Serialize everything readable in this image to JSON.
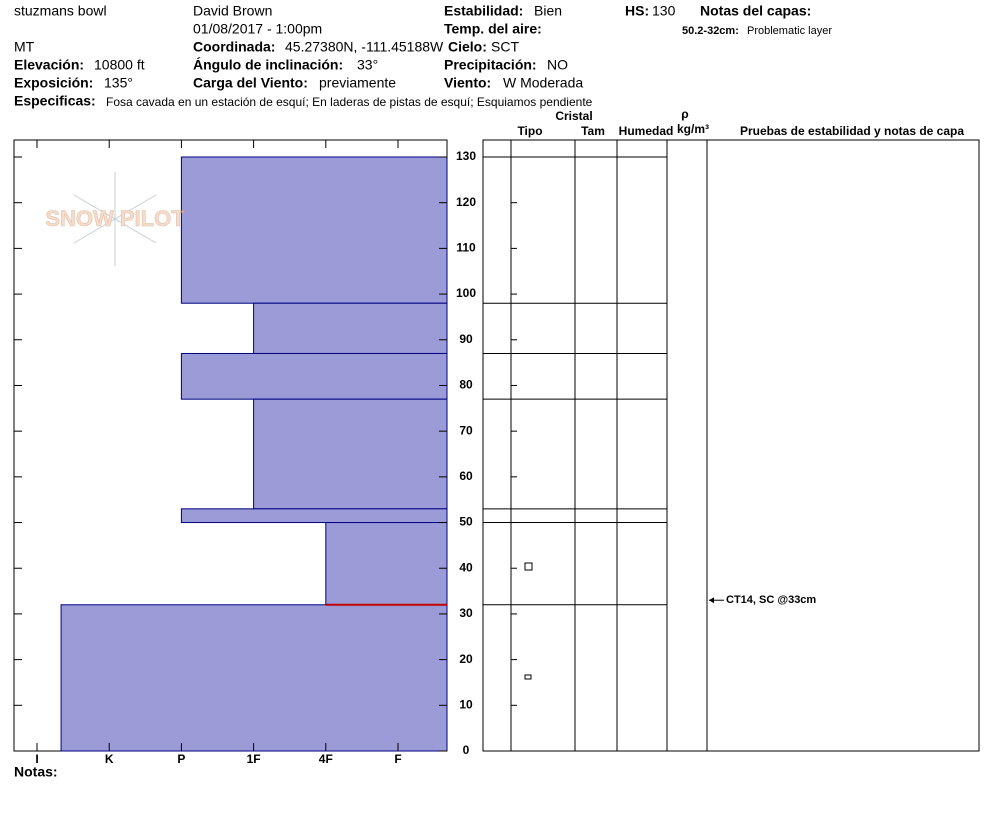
{
  "header": {
    "location": "stuzmans bowl",
    "observer": "David Brown",
    "datetime": "01/08/2017 - 1:00pm",
    "state": "MT",
    "elevation_label": "Elevación:",
    "elevation": "10800 ft",
    "aspect_label": "Exposición:",
    "aspect": "135°",
    "coord_label": "Coordinada:",
    "coord": "45.27380N, -111.45188W",
    "slope_label": "Ángulo de inclinación:",
    "slope": "33°",
    "wind_load_label": "Carga del Viento:",
    "wind_load": "previamente",
    "stability_label": "Estabilidad:",
    "stability": "Bien",
    "air_temp_label": "Temp. del aire:",
    "sky_label": "Cielo:",
    "sky": "SCT",
    "precip_label": "Precipitación:",
    "precip": "NO",
    "wind_label": "Viento:",
    "wind": "W Moderada",
    "hs_label": "HS:",
    "hs": "130",
    "layer_notes_label": "Notas del capas:",
    "layer_note_range": "50.2-32cm:",
    "layer_note": "Problematic layer",
    "specifics_label": "Especificas:",
    "specifics": "Fosa cavada en un estación de esquí; En laderas de pistas de esquí; Esquiamos pendiente",
    "notes_label": "Notas:",
    "logo": "SNOW PILOT"
  },
  "columns": {
    "crystal": "Cristal",
    "type": "Tipo",
    "size": "Tam",
    "moisture": "Humedad",
    "rho": "ρ",
    "density_unit": "kg/m³",
    "tests": "Pruebas de estabilidad y notas de capa"
  },
  "chart_data": {
    "type": "hardness-profile",
    "color": "#9b9bd8",
    "edge_color": "#000080",
    "hardness_categories": [
      "I",
      "K",
      "P",
      "1F",
      "4F",
      "F"
    ],
    "ylim": [
      0,
      130
    ],
    "yticks": [
      0,
      10,
      20,
      30,
      40,
      50,
      60,
      70,
      80,
      90,
      100,
      110,
      120,
      130
    ],
    "layers": [
      {
        "top": 130,
        "bottom": 98,
        "hardness": "P"
      },
      {
        "top": 98,
        "bottom": 87,
        "hardness": "1F"
      },
      {
        "top": 87,
        "bottom": 77,
        "hardness": "P"
      },
      {
        "top": 77,
        "bottom": 53,
        "hardness": "1F"
      },
      {
        "top": 53,
        "bottom": 50,
        "hardness": "P"
      },
      {
        "top": 50,
        "bottom": 32,
        "hardness": "4F"
      },
      {
        "top": 32,
        "bottom": 0,
        "hardness": "I+"
      }
    ],
    "problem_depth": 32,
    "problem_color": "#c00000",
    "stability_test": {
      "label": "CT14, SC @33cm",
      "depth": 33
    }
  }
}
